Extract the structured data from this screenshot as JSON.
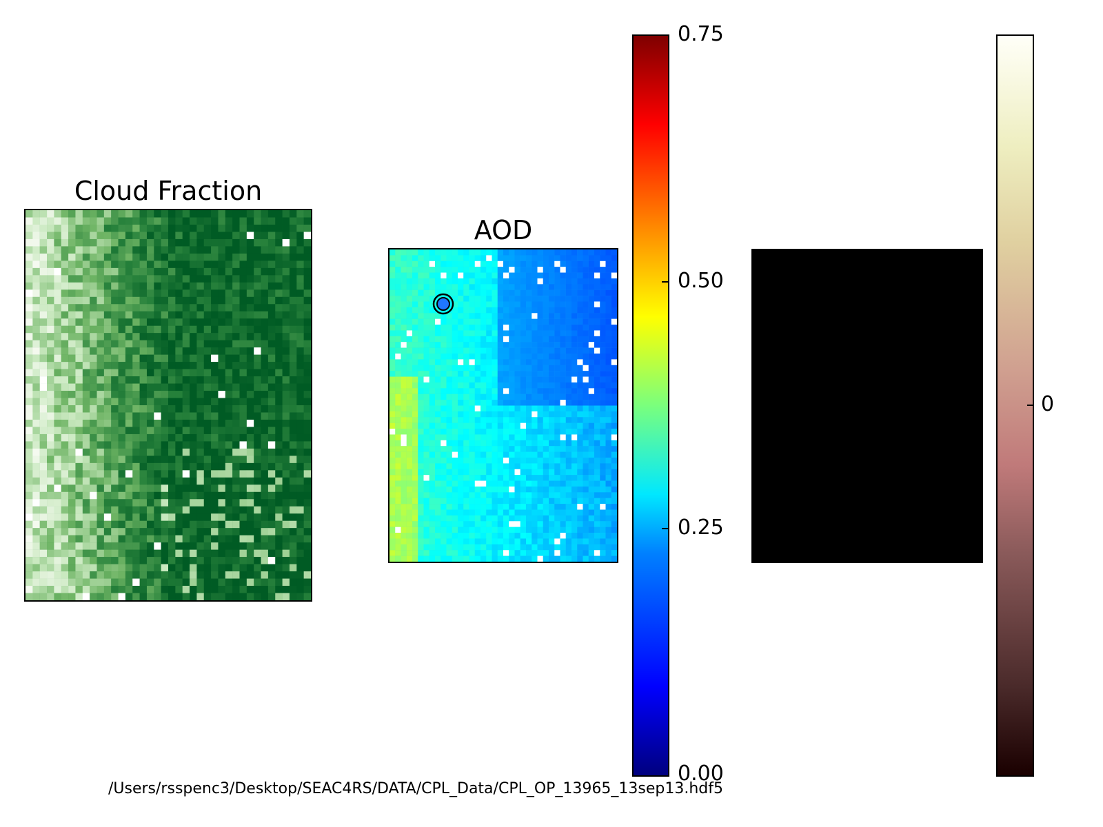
{
  "chart_data": [
    {
      "type": "heatmap",
      "title": "Cloud Fraction",
      "colormap": "Greens",
      "colors": {
        "low": "#f2faee",
        "mid": "#5aa955",
        "high": "#005b24"
      }
    },
    {
      "type": "heatmap",
      "title": "AOD",
      "colormap": "jet",
      "marker": {
        "type": "circle",
        "color": "#1f77ff"
      },
      "colorbar": {
        "ticks": [
          "0.75",
          "0.50",
          "0.25",
          "0.00"
        ],
        "range": [
          0,
          0.75
        ]
      }
    },
    {
      "type": "heatmap",
      "title": "",
      "fill": "#000000",
      "colormap": "pink",
      "colorbar": {
        "ticks": [
          "0"
        ]
      }
    }
  ],
  "footer": {
    "path": "/Users/rsspenc3/Desktop/SEAC4RS/DATA/CPL_Data/CPL_OP_13965_13sep13.hdf5"
  }
}
